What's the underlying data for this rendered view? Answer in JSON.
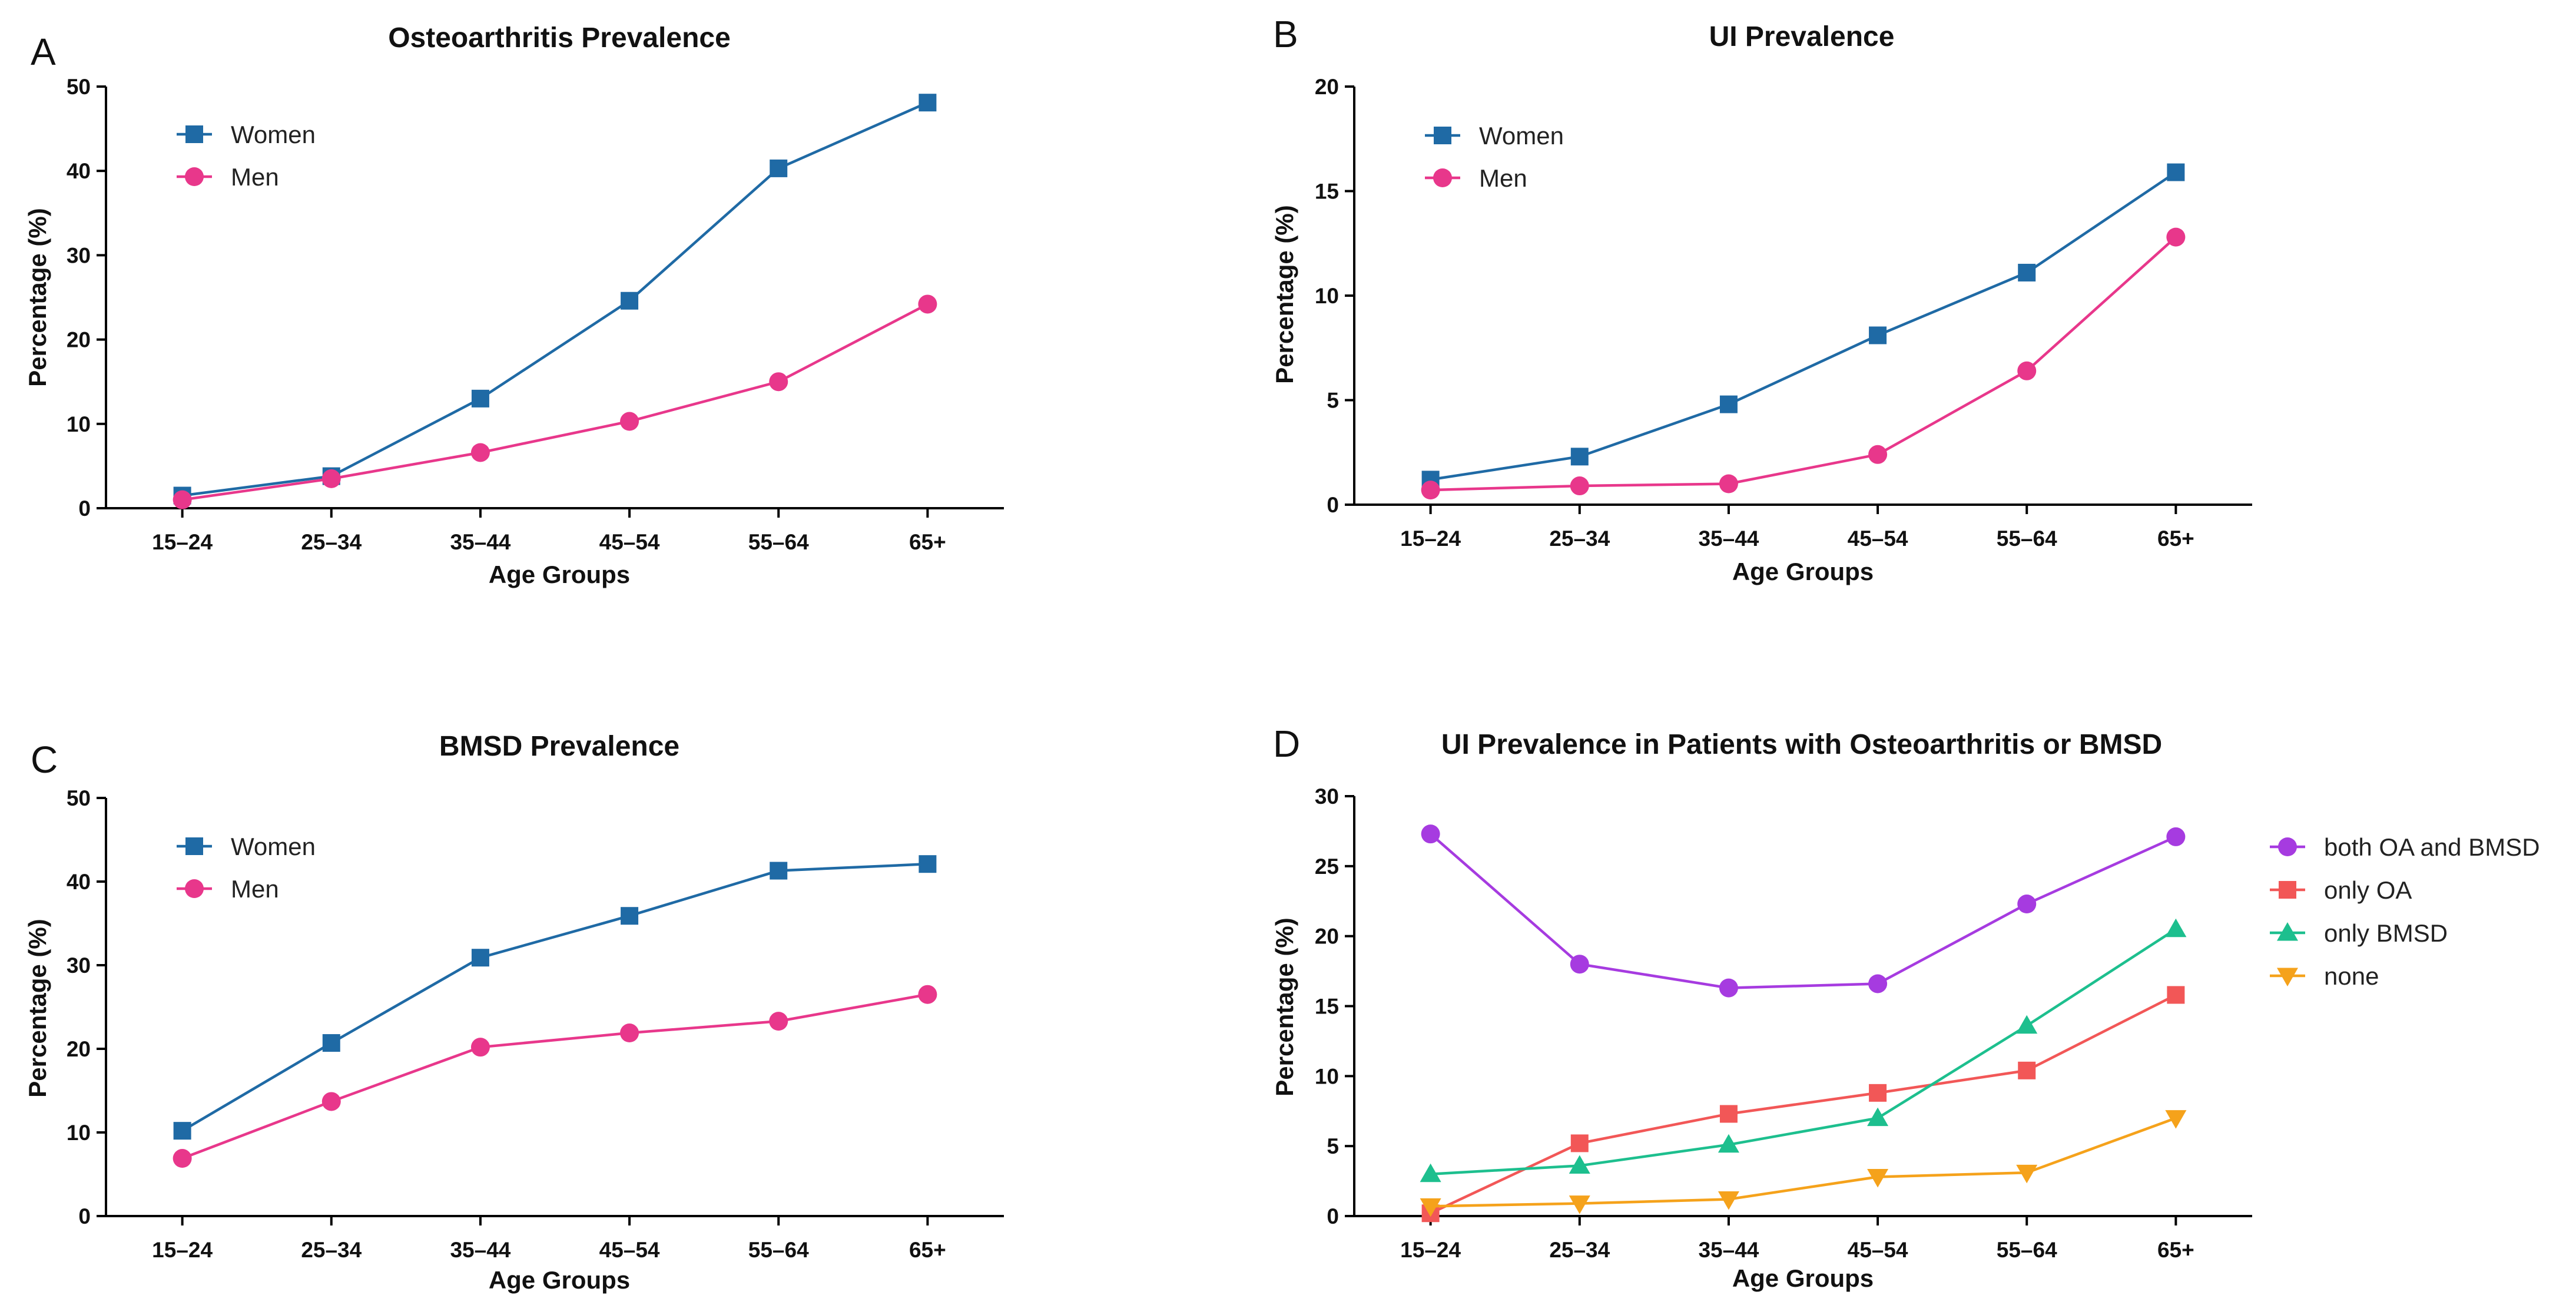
{
  "chart_data": [
    {
      "panel": "A",
      "type": "line",
      "title": "Osteoarthritis Prevalence",
      "xlabel": "Age Groups",
      "ylabel": "Percentage (%)",
      "categories": [
        "15–24",
        "25–34",
        "35–44",
        "45–54",
        "55–64",
        "65+"
      ],
      "ylim": [
        0,
        50
      ],
      "yticks": [
        0,
        10,
        20,
        30,
        40,
        50
      ],
      "legend_position": "top-left",
      "series": [
        {
          "name": "Women",
          "color": "#1f6aa5",
          "marker": "square",
          "values": [
            1.5,
            3.8,
            13.0,
            24.6,
            40.3,
            48.1
          ]
        },
        {
          "name": "Men",
          "color": "#e8378b",
          "marker": "circle",
          "values": [
            1.0,
            3.5,
            6.6,
            10.3,
            15.0,
            24.2
          ]
        }
      ]
    },
    {
      "panel": "B",
      "type": "line",
      "title": "UI Prevalence",
      "xlabel": "Age Groups",
      "ylabel": "Percentage (%)",
      "categories": [
        "15–24",
        "25–34",
        "35–44",
        "45–54",
        "55–64",
        "65+"
      ],
      "ylim": [
        0,
        20
      ],
      "yticks": [
        0,
        5,
        10,
        15,
        20
      ],
      "legend_position": "top-left",
      "series": [
        {
          "name": "Women",
          "color": "#1f6aa5",
          "marker": "square",
          "values": [
            1.2,
            2.3,
            4.8,
            8.1,
            11.1,
            15.9
          ]
        },
        {
          "name": "Men",
          "color": "#e8378b",
          "marker": "circle",
          "values": [
            0.7,
            0.9,
            1.0,
            2.4,
            6.4,
            12.8
          ]
        }
      ]
    },
    {
      "panel": "C",
      "type": "line",
      "title": "BMSD Prevalence",
      "xlabel": "Age Groups",
      "ylabel": "Percentage (%)",
      "categories": [
        "15–24",
        "25–34",
        "35–44",
        "45–54",
        "55–64",
        "65+"
      ],
      "ylim": [
        0,
        50
      ],
      "yticks": [
        0,
        10,
        20,
        30,
        40,
        50
      ],
      "legend_position": "top-left",
      "series": [
        {
          "name": "Women",
          "color": "#1f6aa5",
          "marker": "square",
          "values": [
            10.2,
            20.7,
            30.9,
            35.9,
            41.3,
            42.1
          ]
        },
        {
          "name": "Men",
          "color": "#e8378b",
          "marker": "circle",
          "values": [
            6.9,
            13.7,
            20.2,
            21.9,
            23.3,
            26.5
          ]
        }
      ]
    },
    {
      "panel": "D",
      "type": "line",
      "title": "UI Prevalence in Patients with Osteoarthritis or BMSD",
      "xlabel": "Age Groups",
      "ylabel": "Percentage (%)",
      "categories": [
        "15–24",
        "25–34",
        "35–44",
        "45–54",
        "55–64",
        "65+"
      ],
      "ylim": [
        0,
        30
      ],
      "yticks": [
        0,
        5,
        10,
        15,
        20,
        25,
        30
      ],
      "legend_position": "right",
      "series": [
        {
          "name": "both OA and BMSD",
          "color": "#a63be0",
          "marker": "circle",
          "values": [
            27.3,
            18.0,
            16.3,
            16.6,
            22.3,
            27.1
          ]
        },
        {
          "name": "only OA",
          "color": "#f25757",
          "marker": "square",
          "values": [
            0.2,
            5.2,
            7.3,
            8.8,
            10.4,
            15.8
          ]
        },
        {
          "name": "only BMSD",
          "color": "#1dbf8e",
          "marker": "triangle-up",
          "values": [
            3.0,
            3.6,
            5.1,
            7.0,
            13.6,
            20.5
          ]
        },
        {
          "name": "none",
          "color": "#f5a21b",
          "marker": "triangle-down",
          "values": [
            0.7,
            0.9,
            1.2,
            2.8,
            3.1,
            7.0
          ]
        }
      ]
    }
  ]
}
